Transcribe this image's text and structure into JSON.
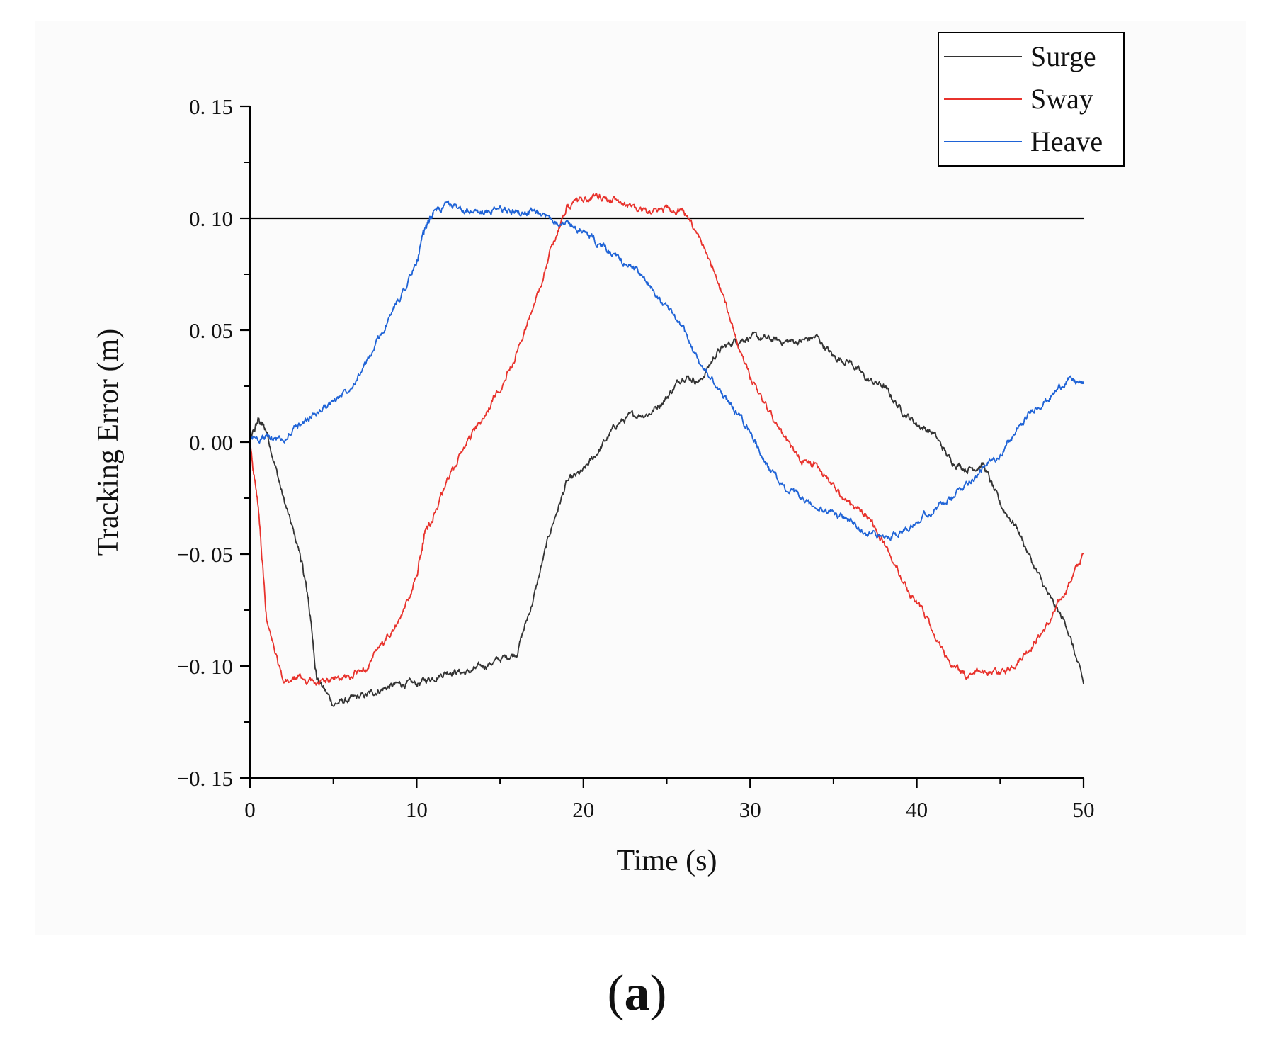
{
  "chart_data": {
    "type": "line",
    "xlabel": "Time (s)",
    "ylabel": "Tracking Error (m)",
    "xlim": [
      0,
      50
    ],
    "ylim": [
      -0.15,
      0.15
    ],
    "x_ticks": [
      0,
      10,
      20,
      30,
      40,
      50
    ],
    "x_tick_labels": [
      "0",
      "10",
      "20",
      "30",
      "40",
      "50"
    ],
    "y_ticks": [
      0.15,
      0.1,
      0.05,
      0.0,
      -0.05,
      -0.1,
      -0.15
    ],
    "y_tick_labels": [
      "0. 15",
      "0. 10",
      "0. 05",
      "0. 00",
      "−0. 05",
      "−0. 10",
      "−0. 15"
    ],
    "reference_line": {
      "y": 0.1,
      "color": "#000000"
    },
    "legend": {
      "position": "top-right"
    },
    "series": [
      {
        "name": "Surge",
        "color": "#333333",
        "points": [
          [
            0,
            0
          ],
          [
            0.5,
            0.01
          ],
          [
            1,
            0.005
          ],
          [
            2,
            -0.025
          ],
          [
            3,
            -0.05
          ],
          [
            3.5,
            -0.07
          ],
          [
            4,
            -0.105
          ],
          [
            5,
            -0.117
          ],
          [
            6,
            -0.115
          ],
          [
            7,
            -0.113
          ],
          [
            8,
            -0.11
          ],
          [
            9,
            -0.108
          ],
          [
            10,
            -0.108
          ],
          [
            11,
            -0.105
          ],
          [
            12,
            -0.102
          ],
          [
            13,
            -0.103
          ],
          [
            14,
            -0.1
          ],
          [
            15,
            -0.097
          ],
          [
            16,
            -0.094
          ],
          [
            17,
            -0.07
          ],
          [
            18,
            -0.04
          ],
          [
            19,
            -0.018
          ],
          [
            20,
            -0.013
          ],
          [
            21,
            -0.003
          ],
          [
            22,
            0.008
          ],
          [
            23,
            0.012
          ],
          [
            24,
            0.013
          ],
          [
            25,
            0.02
          ],
          [
            26,
            0.03
          ],
          [
            27,
            0.027
          ],
          [
            28,
            0.04
          ],
          [
            29,
            0.045
          ],
          [
            30,
            0.047
          ],
          [
            31,
            0.046
          ],
          [
            32,
            0.045
          ],
          [
            33,
            0.045
          ],
          [
            34,
            0.047
          ],
          [
            35,
            0.038
          ],
          [
            36,
            0.036
          ],
          [
            37,
            0.028
          ],
          [
            38,
            0.025
          ],
          [
            39,
            0.015
          ],
          [
            40,
            0.008
          ],
          [
            41,
            0.004
          ],
          [
            42,
            -0.008
          ],
          [
            43,
            -0.012
          ],
          [
            44,
            -0.01
          ],
          [
            45,
            -0.028
          ],
          [
            46,
            -0.038
          ],
          [
            47,
            -0.055
          ],
          [
            48,
            -0.07
          ],
          [
            49,
            -0.082
          ],
          [
            50,
            -0.108
          ]
        ]
      },
      {
        "name": "Sway",
        "color": "#e8322c",
        "points": [
          [
            0,
            0
          ],
          [
            0.5,
            -0.03
          ],
          [
            1,
            -0.08
          ],
          [
            2,
            -0.108
          ],
          [
            3,
            -0.105
          ],
          [
            4,
            -0.108
          ],
          [
            5,
            -0.106
          ],
          [
            6,
            -0.105
          ],
          [
            7,
            -0.1
          ],
          [
            8,
            -0.09
          ],
          [
            9,
            -0.08
          ],
          [
            10,
            -0.06
          ],
          [
            10.5,
            -0.04
          ],
          [
            11,
            -0.033
          ],
          [
            12,
            -0.015
          ],
          [
            13,
            0
          ],
          [
            14,
            0.01
          ],
          [
            15,
            0.025
          ],
          [
            16,
            0.04
          ],
          [
            17,
            0.06
          ],
          [
            18,
            0.085
          ],
          [
            19,
            0.105
          ],
          [
            20,
            0.108
          ],
          [
            21,
            0.11
          ],
          [
            22,
            0.107
          ],
          [
            23,
            0.105
          ],
          [
            24,
            0.103
          ],
          [
            25,
            0.104
          ],
          [
            26,
            0.103
          ],
          [
            27,
            0.09
          ],
          [
            28,
            0.075
          ],
          [
            29,
            0.05
          ],
          [
            30,
            0.03
          ],
          [
            31,
            0.015
          ],
          [
            32,
            0.002
          ],
          [
            33,
            -0.008
          ],
          [
            34,
            -0.01
          ],
          [
            35,
            -0.02
          ],
          [
            36,
            -0.028
          ],
          [
            37,
            -0.032
          ],
          [
            38,
            -0.045
          ],
          [
            39,
            -0.06
          ],
          [
            40,
            -0.072
          ],
          [
            41,
            -0.085
          ],
          [
            42,
            -0.1
          ],
          [
            43,
            -0.104
          ],
          [
            44,
            -0.102
          ],
          [
            45,
            -0.104
          ],
          [
            46,
            -0.098
          ],
          [
            47,
            -0.09
          ],
          [
            48,
            -0.08
          ],
          [
            49,
            -0.065
          ],
          [
            50,
            -0.05
          ]
        ]
      },
      {
        "name": "Heave",
        "color": "#1f63d6",
        "points": [
          [
            0,
            0.002
          ],
          [
            1,
            0.002
          ],
          [
            2,
            0.001
          ],
          [
            3,
            0.008
          ],
          [
            4,
            0.013
          ],
          [
            5,
            0.018
          ],
          [
            6,
            0.025
          ],
          [
            7,
            0.035
          ],
          [
            8,
            0.05
          ],
          [
            9,
            0.065
          ],
          [
            10,
            0.08
          ],
          [
            10.5,
            0.095
          ],
          [
            11,
            0.103
          ],
          [
            12,
            0.106
          ],
          [
            13,
            0.104
          ],
          [
            14,
            0.102
          ],
          [
            15,
            0.104
          ],
          [
            16,
            0.103
          ],
          [
            17,
            0.102
          ],
          [
            18,
            0.1
          ],
          [
            19,
            0.098
          ],
          [
            20,
            0.094
          ],
          [
            21,
            0.088
          ],
          [
            22,
            0.082
          ],
          [
            23,
            0.078
          ],
          [
            24,
            0.07
          ],
          [
            25,
            0.06
          ],
          [
            26,
            0.05
          ],
          [
            27,
            0.035
          ],
          [
            28,
            0.025
          ],
          [
            29,
            0.015
          ],
          [
            30,
            0.005
          ],
          [
            31,
            -0.01
          ],
          [
            32,
            -0.02
          ],
          [
            33,
            -0.025
          ],
          [
            34,
            -0.03
          ],
          [
            35,
            -0.032
          ],
          [
            36,
            -0.035
          ],
          [
            37,
            -0.04
          ],
          [
            38,
            -0.043
          ],
          [
            39,
            -0.04
          ],
          [
            40,
            -0.035
          ],
          [
            41,
            -0.03
          ],
          [
            42,
            -0.026
          ],
          [
            43,
            -0.018
          ],
          [
            44,
            -0.012
          ],
          [
            45,
            -0.005
          ],
          [
            46,
            0.005
          ],
          [
            47,
            0.015
          ],
          [
            48,
            0.02
          ],
          [
            49,
            0.028
          ],
          [
            50,
            0.026
          ]
        ]
      }
    ]
  },
  "caption": "a"
}
